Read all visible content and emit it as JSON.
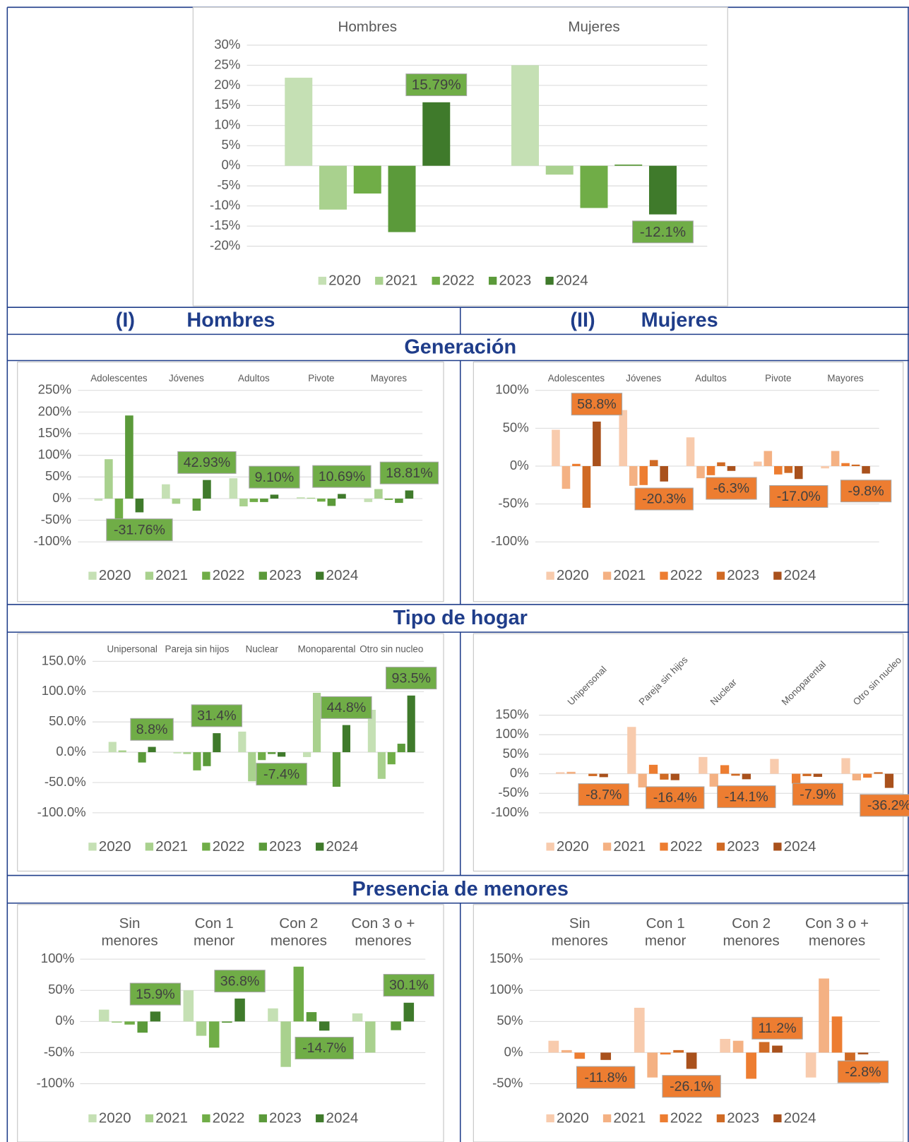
{
  "table": {
    "columns": [
      {
        "number": "(I)",
        "label": "Hombres"
      },
      {
        "number": "(II)",
        "label": "Mujeres"
      }
    ],
    "sections": [
      "Generación",
      "Tipo de hogar",
      "Presencia de menores"
    ]
  },
  "chart_data": [
    {
      "type": "bar",
      "categories": [
        "Hombres",
        "Mujeres"
      ],
      "ylim": [
        -20,
        30
      ],
      "yticks": [
        {
          "value": 30,
          "label": "30%"
        },
        {
          "value": 25,
          "label": "25%"
        },
        {
          "value": 20,
          "label": "20%"
        },
        {
          "value": 15,
          "label": "15%"
        },
        {
          "value": 10,
          "label": "10%"
        },
        {
          "value": 5,
          "label": "5%"
        },
        {
          "value": 0,
          "label": "0%"
        },
        {
          "value": -5,
          "label": "-5%"
        },
        {
          "value": -10,
          "label": "-10%"
        },
        {
          "value": -15,
          "label": "-15%"
        },
        {
          "value": -20,
          "label": "-20%"
        }
      ],
      "grid": true,
      "legend": "bottom",
      "label_fill": "#70ad47",
      "series": [
        {
          "name": "2020",
          "color": "#c5e0b4",
          "values": [
            21.9,
            25
          ]
        },
        {
          "name": "2021",
          "color": "#a9d18e",
          "values": [
            -10.9,
            -2.2
          ]
        },
        {
          "name": "2022",
          "color": "#70ad47",
          "values": [
            -6.9,
            -10.5
          ]
        },
        {
          "name": "2023",
          "color": "#5b9a3a",
          "values": [
            -16.5,
            0.3
          ]
        },
        {
          "name": "2024",
          "color": "#3f7a2b",
          "values": [
            15.79,
            -12.1
          ],
          "value_labels": [
            "15.79%",
            "-12.1%"
          ]
        }
      ]
    },
    {
      "type": "bar",
      "categories": [
        "Adolescentes",
        "Jóvenes",
        "Adultos",
        "Pivote",
        "Mayores"
      ],
      "ylim": [
        -100,
        250
      ],
      "yticks": [
        {
          "value": 250,
          "label": "250%"
        },
        {
          "value": 200,
          "label": "200%"
        },
        {
          "value": 150,
          "label": "150%"
        },
        {
          "value": 100,
          "label": "100%"
        },
        {
          "value": 50,
          "label": "50%"
        },
        {
          "value": 0,
          "label": "0%"
        },
        {
          "value": -50,
          "label": "-50%"
        },
        {
          "value": -100,
          "label": "-100%"
        }
      ],
      "grid": true,
      "legend": "bottom",
      "label_fill": "#70ad47",
      "series": [
        {
          "name": "2020",
          "color": "#c5e0b4",
          "values": [
            -5,
            33,
            47,
            3,
            -8
          ]
        },
        {
          "name": "2021",
          "color": "#a9d18e",
          "values": [
            91,
            -12,
            -18,
            2,
            22
          ]
        },
        {
          "name": "2022",
          "color": "#70ad47",
          "values": [
            -50,
            0,
            -8,
            -7,
            -3
          ]
        },
        {
          "name": "2023",
          "color": "#5b9a3a",
          "values": [
            192,
            -28,
            -8,
            -17,
            -10
          ]
        },
        {
          "name": "2024",
          "color": "#3f7a2b",
          "values": [
            -31.76,
            42.93,
            9.1,
            10.69,
            18.81
          ],
          "value_labels": [
            "-31.76%",
            "42.93%",
            "9.10%",
            "10.69%",
            "18.81%"
          ]
        }
      ]
    },
    {
      "type": "bar",
      "categories": [
        "Adolescentes",
        "Jóvenes",
        "Adultos",
        "Pivote",
        "Mayores"
      ],
      "ylim": [
        -100,
        100
      ],
      "yticks": [
        {
          "value": 100,
          "label": "100%"
        },
        {
          "value": 50,
          "label": "50%"
        },
        {
          "value": 0,
          "label": "0%"
        },
        {
          "value": -50,
          "label": "-50%"
        },
        {
          "value": -100,
          "label": "-100%"
        }
      ],
      "grid": true,
      "legend": "bottom",
      "label_fill": "#ed7d31",
      "series": [
        {
          "name": "2020",
          "color": "#f8cbad",
          "values": [
            48,
            74,
            38,
            6,
            -3
          ]
        },
        {
          "name": "2021",
          "color": "#f4b183",
          "values": [
            -30,
            -26,
            -16,
            20,
            20
          ]
        },
        {
          "name": "2022",
          "color": "#ed7d31",
          "values": [
            3,
            -25,
            -12,
            -11,
            4
          ]
        },
        {
          "name": "2023",
          "color": "#d06a24",
          "values": [
            -55,
            8,
            5,
            -9,
            2
          ]
        },
        {
          "name": "2024",
          "color": "#a9511c",
          "values": [
            58.8,
            -20.3,
            -6.3,
            -17,
            -9.8
          ],
          "value_labels": [
            "58.8%",
            "-20.3%",
            "-6.3%",
            "-17.0%",
            "-9.8%"
          ]
        }
      ]
    },
    {
      "type": "bar",
      "categories": [
        "Unipersonal",
        "Pareja sin hijos",
        "Nuclear",
        "Monoparental",
        "Otro sin nucleo"
      ],
      "ylim": [
        -100,
        150
      ],
      "yticks": [
        {
          "value": 150,
          "label": "150.0%"
        },
        {
          "value": 100,
          "label": "100.0%"
        },
        {
          "value": 50,
          "label": "50.0%"
        },
        {
          "value": 0,
          "label": "0.0%"
        },
        {
          "value": -50,
          "label": "-50.0%"
        },
        {
          "value": -100,
          "label": "-100.0%"
        }
      ],
      "grid": true,
      "legend": "bottom",
      "label_fill": "#70ad47",
      "series": [
        {
          "name": "2020",
          "color": "#c5e0b4",
          "values": [
            17,
            -2,
            34,
            -8,
            70
          ]
        },
        {
          "name": "2021",
          "color": "#a9d18e",
          "values": [
            3,
            -3,
            -48,
            98,
            -44
          ]
        },
        {
          "name": "2022",
          "color": "#70ad47",
          "values": [
            0,
            -30,
            -13,
            0,
            -20
          ]
        },
        {
          "name": "2023",
          "color": "#5b9a3a",
          "values": [
            -17,
            -23,
            -3,
            -57,
            14
          ]
        },
        {
          "name": "2024",
          "color": "#3f7a2b",
          "values": [
            8.8,
            31.4,
            -7.4,
            44.8,
            93.5
          ],
          "value_labels": [
            "8.8%",
            "31.4%",
            "-7.4%",
            "44.8%",
            "93.5%"
          ]
        }
      ]
    },
    {
      "type": "bar",
      "categories": [
        "Unipersonal",
        "Pareja sin hijos",
        "Nuclear",
        "Monoparental",
        "Otro sin nucleo"
      ],
      "ylim": [
        -100,
        150
      ],
      "yticks": [
        {
          "value": 150,
          "label": "150%"
        },
        {
          "value": 100,
          "label": "100%"
        },
        {
          "value": 50,
          "label": "50%"
        },
        {
          "value": 0,
          "label": "0%"
        },
        {
          "value": -50,
          "label": "-50%"
        },
        {
          "value": -100,
          "label": "-100%"
        }
      ],
      "grid": true,
      "legend": "bottom",
      "label_fill": "#ed7d31",
      "series": [
        {
          "name": "2020",
          "color": "#f8cbad",
          "values": [
            4,
            120,
            43,
            38,
            40
          ]
        },
        {
          "name": "2021",
          "color": "#f4b183",
          "values": [
            5,
            -35,
            -33,
            0,
            -17
          ]
        },
        {
          "name": "2022",
          "color": "#ed7d31",
          "values": [
            0,
            23,
            22,
            -25,
            -10
          ]
        },
        {
          "name": "2023",
          "color": "#d06a24",
          "values": [
            -6,
            -15,
            -5,
            -6,
            4
          ]
        },
        {
          "name": "2024",
          "color": "#a9511c",
          "values": [
            -8.7,
            -16.4,
            -14.1,
            -7.9,
            -36.2
          ],
          "value_labels": [
            "-8.7%",
            "-16.4%",
            "-14.1%",
            "-7.9%",
            "-36.2%"
          ]
        }
      ]
    },
    {
      "type": "bar",
      "categories": [
        "Sin menores",
        "Con 1 menor",
        "Con 2 menores",
        "Con 3 o + menores"
      ],
      "ylim": [
        -100,
        100
      ],
      "yticks": [
        {
          "value": 100,
          "label": "100%"
        },
        {
          "value": 50,
          "label": "50%"
        },
        {
          "value": 0,
          "label": "0%"
        },
        {
          "value": -50,
          "label": "-50%"
        },
        {
          "value": -100,
          "label": "-100%"
        }
      ],
      "grid": true,
      "legend": "bottom",
      "label_fill": "#70ad47",
      "series": [
        {
          "name": "2020",
          "color": "#c5e0b4",
          "values": [
            19,
            50,
            21,
            13
          ]
        },
        {
          "name": "2021",
          "color": "#a9d18e",
          "values": [
            -2,
            -23,
            -73,
            -50
          ]
        },
        {
          "name": "2022",
          "color": "#70ad47",
          "values": [
            -5,
            -42,
            88,
            0
          ]
        },
        {
          "name": "2023",
          "color": "#5b9a3a",
          "values": [
            -18,
            -2,
            15,
            -14
          ]
        },
        {
          "name": "2024",
          "color": "#3f7a2b",
          "values": [
            15.9,
            36.8,
            -14.7,
            30.1
          ],
          "value_labels": [
            "15.9%",
            "36.8%",
            "-14.7%",
            "30.1%"
          ]
        }
      ]
    },
    {
      "type": "bar",
      "categories": [
        "Sin menores",
        "Con 1 menor",
        "Con 2 menores",
        "Con 3 o + menores"
      ],
      "ylim": [
        -50,
        150
      ],
      "yticks": [
        {
          "value": 150,
          "label": "150%"
        },
        {
          "value": 100,
          "label": "100%"
        },
        {
          "value": 50,
          "label": "50%"
        },
        {
          "value": 0,
          "label": "0%"
        },
        {
          "value": -50,
          "label": "-50%"
        }
      ],
      "grid": true,
      "legend": "bottom",
      "label_fill": "#ed7d31",
      "series": [
        {
          "name": "2020",
          "color": "#f8cbad",
          "values": [
            19,
            72,
            22,
            -40
          ]
        },
        {
          "name": "2021",
          "color": "#f4b183",
          "values": [
            4,
            -40,
            19,
            119
          ]
        },
        {
          "name": "2022",
          "color": "#ed7d31",
          "values": [
            -10,
            -3,
            -42,
            58
          ]
        },
        {
          "name": "2023",
          "color": "#d06a24",
          "values": [
            0,
            4,
            17,
            -13
          ]
        },
        {
          "name": "2024",
          "color": "#a9511c",
          "values": [
            -11.8,
            -26.1,
            11.2,
            -2.8
          ],
          "value_labels": [
            "-11.8%",
            "-26.1%",
            "11.2%",
            "-2.8%"
          ]
        }
      ]
    }
  ]
}
